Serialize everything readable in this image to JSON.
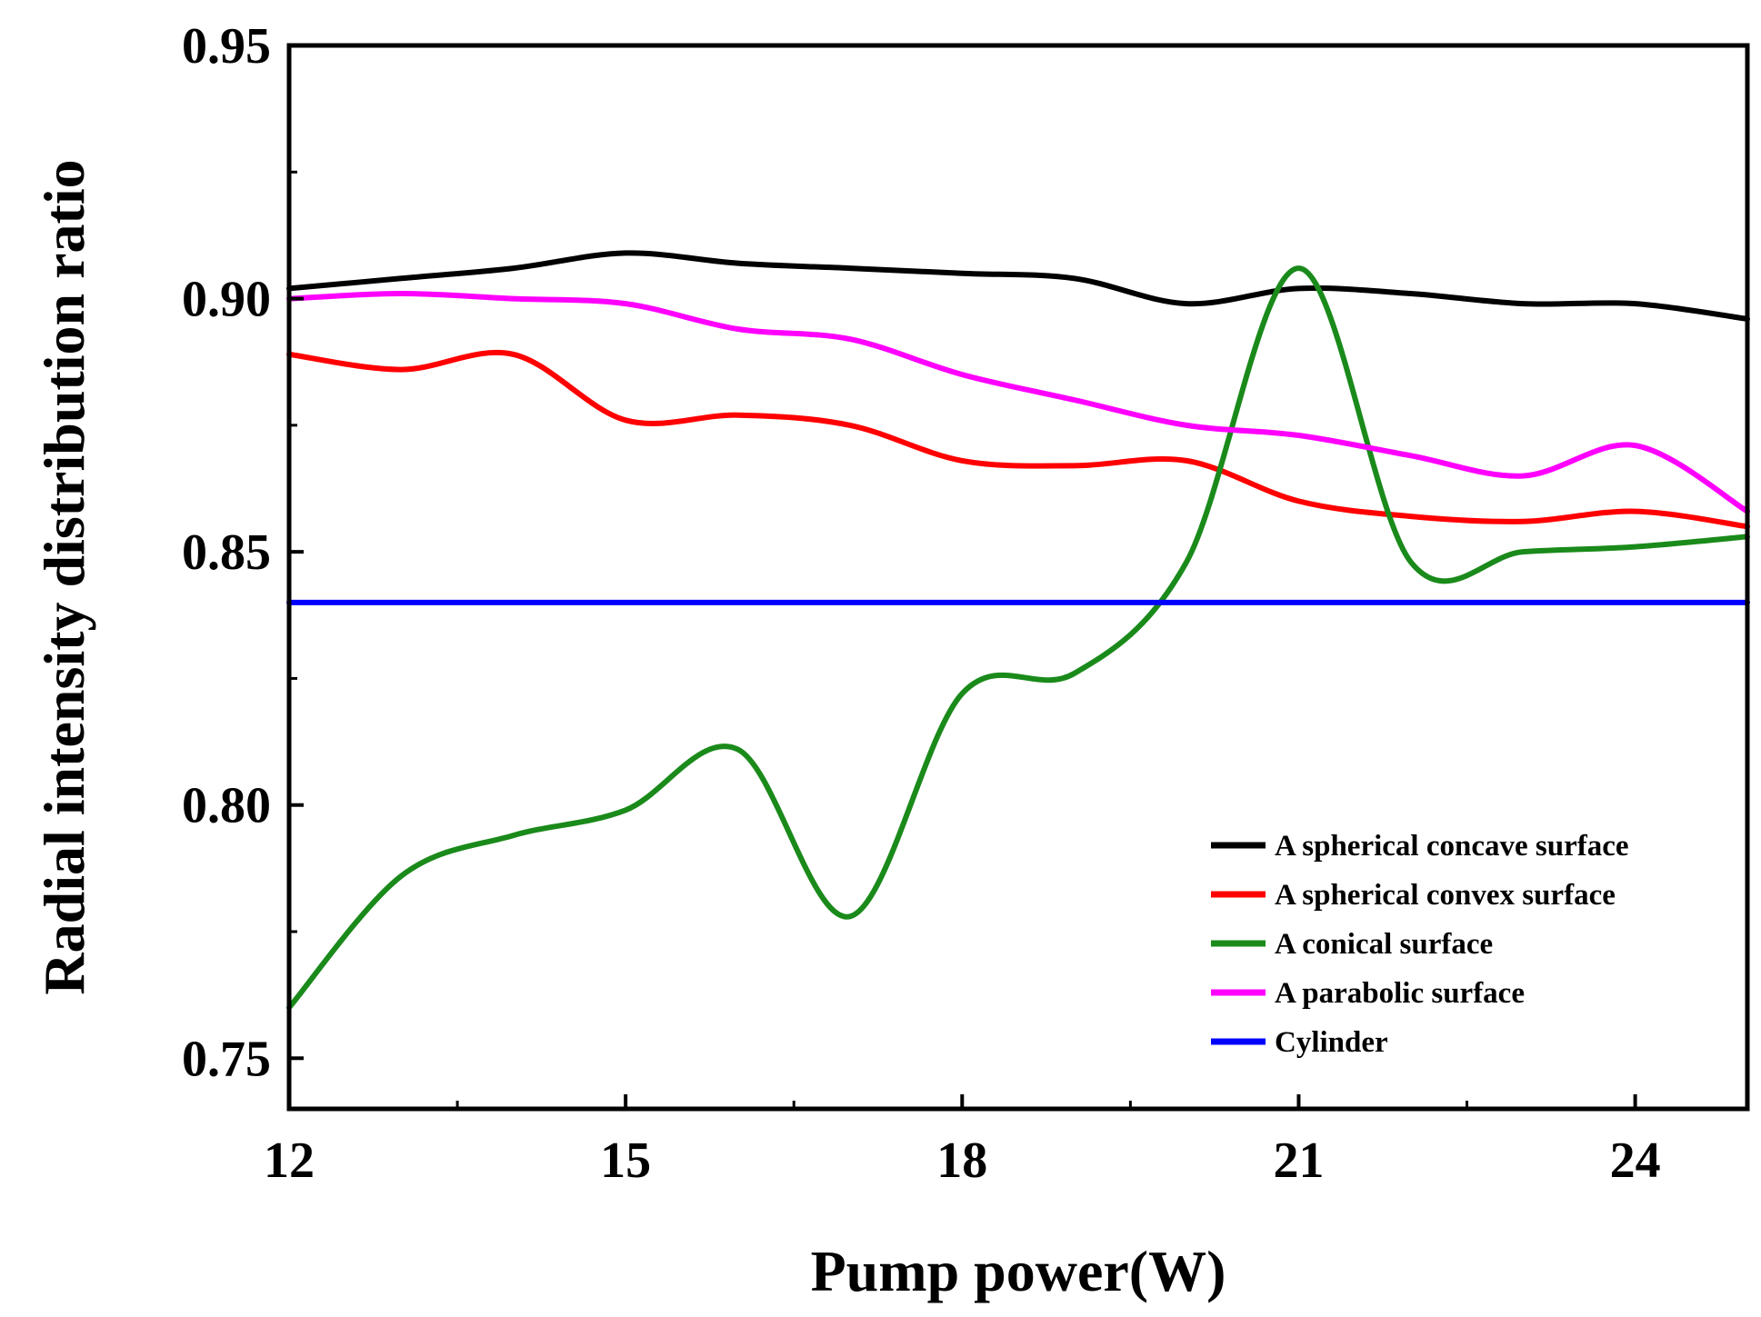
{
  "chart_data": {
    "type": "line",
    "title": "",
    "xlabel": "Pump power(W)",
    "ylabel": "Radial intensity distribution ratio",
    "xlim": [
      12,
      25
    ],
    "ylim": [
      0.74,
      0.95
    ],
    "xticks": [
      12,
      15,
      18,
      21,
      24
    ],
    "xtick_labels": [
      "12",
      "15",
      "18",
      "21",
      "24"
    ],
    "yticks": [
      0.75,
      0.8,
      0.85,
      0.9,
      0.95
    ],
    "ytick_labels": [
      "0.75",
      "0.80",
      "0.85",
      "0.90",
      "0.95"
    ],
    "grid": false,
    "legend_position": "bottom-right",
    "series": [
      {
        "name": "A spherical concave surface",
        "color": "#000000",
        "x": [
          12,
          13,
          14,
          15,
          16,
          17,
          18,
          19,
          20,
          21,
          22,
          23,
          24,
          25
        ],
        "values": [
          0.902,
          0.904,
          0.906,
          0.909,
          0.907,
          0.906,
          0.905,
          0.904,
          0.899,
          0.902,
          0.901,
          0.899,
          0.899,
          0.896
        ]
      },
      {
        "name": "A spherical convex surface",
        "color": "#ff0000",
        "x": [
          12,
          13,
          14,
          15,
          16,
          17,
          18,
          19,
          20,
          21,
          22,
          23,
          24,
          25
        ],
        "values": [
          0.889,
          0.886,
          0.889,
          0.876,
          0.877,
          0.875,
          0.868,
          0.867,
          0.868,
          0.86,
          0.857,
          0.856,
          0.858,
          0.855
        ]
      },
      {
        "name": "A conical surface",
        "color": "#1a8a1a",
        "x": [
          12,
          13,
          14,
          15,
          16,
          17,
          18,
          19,
          20,
          21,
          22,
          23,
          24,
          25
        ],
        "values": [
          0.76,
          0.786,
          0.794,
          0.799,
          0.811,
          0.778,
          0.822,
          0.826,
          0.848,
          0.906,
          0.848,
          0.85,
          0.851,
          0.853
        ]
      },
      {
        "name": "A parabolic surface",
        "color": "#ff00ff",
        "x": [
          12,
          13,
          14,
          15,
          16,
          17,
          18,
          19,
          20,
          21,
          22,
          23,
          24,
          25
        ],
        "values": [
          0.9,
          0.901,
          0.9,
          0.899,
          0.894,
          0.892,
          0.885,
          0.88,
          0.875,
          0.873,
          0.869,
          0.865,
          0.871,
          0.858
        ]
      },
      {
        "name": "Cylinder",
        "color": "#0000ff",
        "x": [
          12,
          25
        ],
        "values": [
          0.84,
          0.84
        ]
      }
    ]
  }
}
